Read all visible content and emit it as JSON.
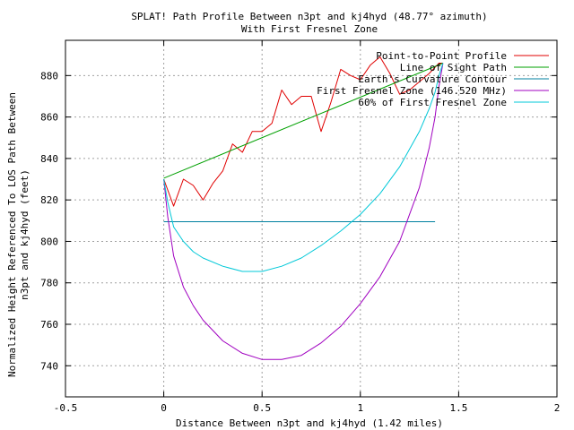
{
  "chart_data": {
    "type": "line",
    "title": "SPLAT! Path Profile Between n3pt and kj4hyd (48.77° azimuth)",
    "subtitle": "With First Fresnel Zone",
    "xlabel": "Distance Between n3pt and kj4hyd (1.42 miles)",
    "ylabel_line1": "Normalized Height Referenced To LOS Path Between",
    "ylabel_line2": "n3pt and kj4hyd (feet)",
    "xlim": [
      -0.5,
      2
    ],
    "ylim": [
      725,
      897
    ],
    "grid": true,
    "legend_position": "top-right",
    "x_ticks": [
      {
        "v": -0.5,
        "label": "-0.5"
      },
      {
        "v": 0,
        "label": "0"
      },
      {
        "v": 0.5,
        "label": "0.5"
      },
      {
        "v": 1,
        "label": "1"
      },
      {
        "v": 1.5,
        "label": "1.5"
      },
      {
        "v": 2,
        "label": "2"
      }
    ],
    "y_ticks": [
      {
        "v": 740,
        "label": "740"
      },
      {
        "v": 760,
        "label": "760"
      },
      {
        "v": 780,
        "label": "780"
      },
      {
        "v": 800,
        "label": "800"
      },
      {
        "v": 820,
        "label": "820"
      },
      {
        "v": 840,
        "label": "840"
      },
      {
        "v": 860,
        "label": "860"
      },
      {
        "v": 880,
        "label": "880"
      }
    ],
    "series": [
      {
        "name": "Point-to-Point Profile",
        "color": "#e00000",
        "x": [
          0,
          0.05,
          0.1,
          0.15,
          0.2,
          0.25,
          0.3,
          0.35,
          0.4,
          0.45,
          0.5,
          0.55,
          0.6,
          0.65,
          0.7,
          0.75,
          0.8,
          0.85,
          0.9,
          0.95,
          1.0,
          1.05,
          1.1,
          1.15,
          1.2,
          1.25,
          1.3,
          1.35,
          1.4,
          1.42
        ],
        "y": [
          830,
          817,
          830,
          827,
          820,
          828,
          834,
          847,
          843,
          853,
          853,
          857,
          873,
          866,
          870,
          870,
          853,
          867,
          883,
          880,
          878,
          885,
          889,
          881,
          871,
          873,
          877,
          881,
          886,
          886
        ]
      },
      {
        "name": "Line of Sight Path",
        "color": "#00a000",
        "x": [
          0,
          1.42
        ],
        "y": [
          830.5,
          886
        ]
      },
      {
        "name": "Earth's Curvature Contour",
        "color": "#0080a0",
        "x": [
          0,
          1.38
        ],
        "y": [
          809.5,
          809.5
        ]
      },
      {
        "name": "First Fresnel Zone (146.520 MHz)",
        "color": "#a000c0",
        "x": [
          0,
          0.02,
          0.05,
          0.1,
          0.15,
          0.2,
          0.3,
          0.4,
          0.5,
          0.6,
          0.7,
          0.8,
          0.9,
          1.0,
          1.1,
          1.2,
          1.3,
          1.35,
          1.38,
          1.4,
          1.42
        ],
        "y": [
          830,
          812,
          793,
          778,
          769,
          762,
          752,
          746,
          743,
          743,
          745,
          751,
          759,
          770,
          783,
          800,
          826,
          845,
          860,
          875,
          886
        ]
      },
      {
        "name": "60% of First Fresnel Zone",
        "color": "#00c8d8",
        "x": [
          0,
          0.02,
          0.05,
          0.1,
          0.15,
          0.2,
          0.3,
          0.4,
          0.5,
          0.6,
          0.7,
          0.8,
          0.9,
          1.0,
          1.1,
          1.2,
          1.3,
          1.35,
          1.38,
          1.4,
          1.42
        ],
        "y": [
          830,
          819,
          807,
          800,
          795,
          792,
          788,
          785.5,
          785.5,
          788,
          792,
          798,
          805,
          813,
          823,
          836,
          853,
          864,
          872,
          880,
          886
        ]
      }
    ]
  }
}
